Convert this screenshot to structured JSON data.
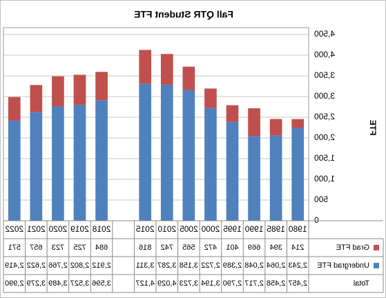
{
  "chart_data": {
    "type": "bar",
    "stacked": true,
    "mirrored": true,
    "title": "Fall QTR Student FTE",
    "y_axis_label": "FTE",
    "categories": [
      "1980",
      "1985",
      "1990",
      "1995",
      "2000",
      "2005",
      "2010",
      "2015",
      null,
      "2018",
      "2019",
      "2020",
      "2021",
      "2022"
    ],
    "series": [
      {
        "name": "Undergrad FTE",
        "color": "#4f81bd",
        "values": [
          2243,
          2064,
          2048,
          2389,
          2722,
          3158,
          3287,
          3311,
          null,
          2912,
          2802,
          2766,
          2622,
          2419
        ],
        "value_labels": [
          "2,243",
          "2,064",
          "2,048",
          "2,389",
          "2,722",
          "3,158",
          "3,287",
          "3,311",
          null,
          "2,912",
          "2,802",
          "2,766",
          "2,622",
          "2,419"
        ]
      },
      {
        "name": "Grad FTE",
        "color": "#c0504d",
        "values": [
          214,
          394,
          669,
          401,
          472,
          565,
          742,
          816,
          null,
          684,
          725,
          723,
          657,
          571
        ]
      }
    ],
    "total": {
      "name": "Total",
      "values": [
        2457,
        2458,
        2717,
        2790,
        3194,
        3723,
        4029,
        4127,
        null,
        3596,
        3527,
        3489,
        3279,
        2990
      ],
      "value_labels": [
        "2,457",
        "2,458",
        "2,717",
        "2,790",
        "3,194",
        "3,723",
        "4,029",
        "4,127",
        null,
        "3,596",
        "3,527",
        "3,489",
        "3,279",
        "2,990"
      ]
    },
    "ylim": [
      0,
      4500
    ],
    "yticks": [
      0,
      500,
      {
        "value": 1000,
        "label": "1,000"
      },
      {
        "value": 1500,
        "label": "1,500"
      },
      {
        "value": 2000,
        "label": "2,000"
      },
      {
        "value": 2500,
        "label": "2,500"
      },
      {
        "value": 3000,
        "label": "3,000"
      },
      {
        "value": 3500,
        "label": "3,500"
      },
      {
        "value": 4000,
        "label": "4,000"
      },
      {
        "value": 4500,
        "label": "4,500"
      }
    ],
    "grid": true
  }
}
